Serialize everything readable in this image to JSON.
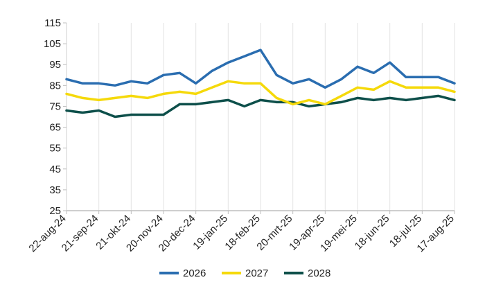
{
  "chart_data": {
    "type": "line",
    "title": "",
    "xlabel": "",
    "ylabel": "",
    "ylim": [
      25,
      115
    ],
    "yticks": [
      25,
      35,
      45,
      55,
      65,
      75,
      85,
      95,
      105,
      115
    ],
    "x_tick_labels": [
      "22-aug-24",
      "21-sep-24",
      "21-okt-24",
      "20-nov-24",
      "20-dec-24",
      "19-jan-25",
      "18-feb-25",
      "20-mrt-25",
      "19-apr-25",
      "19-mei-25",
      "18-jun-25",
      "18-jul-25",
      "17-aug-25"
    ],
    "grid": "vertical",
    "legend": "bottom",
    "colors": {
      "2026": "#2a6db0",
      "2027": "#f5d90a",
      "2028": "#0d4f4a"
    },
    "series": [
      {
        "name": "2026",
        "x": [
          "22-aug-24",
          "6-sep-24",
          "21-sep-24",
          "6-okt-24",
          "21-okt-24",
          "5-nov-24",
          "20-nov-24",
          "5-dec-24",
          "20-dec-24",
          "4-jan-25",
          "19-jan-25",
          "3-feb-25",
          "18-feb-25",
          "5-mrt-25",
          "20-mrt-25",
          "4-apr-25",
          "19-apr-25",
          "4-mei-25",
          "19-mei-25",
          "3-jun-25",
          "18-jun-25",
          "3-jul-25",
          "18-jul-25",
          "2-aug-25",
          "17-aug-25"
        ],
        "values": [
          88,
          86,
          86,
          85,
          87,
          86,
          90,
          91,
          86,
          92,
          96,
          99,
          102,
          90,
          86,
          88,
          84,
          88,
          94,
          91,
          96,
          89,
          89,
          89,
          86
        ]
      },
      {
        "name": "2027",
        "x": [
          "22-aug-24",
          "6-sep-24",
          "21-sep-24",
          "6-okt-24",
          "21-okt-24",
          "5-nov-24",
          "20-nov-24",
          "5-dec-24",
          "20-dec-24",
          "4-jan-25",
          "19-jan-25",
          "3-feb-25",
          "18-feb-25",
          "5-mrt-25",
          "20-mrt-25",
          "4-apr-25",
          "19-apr-25",
          "4-mei-25",
          "19-mei-25",
          "3-jun-25",
          "18-jun-25",
          "3-jul-25",
          "18-jul-25",
          "2-aug-25",
          "17-aug-25"
        ],
        "values": [
          81,
          79,
          78,
          79,
          80,
          79,
          81,
          82,
          81,
          84,
          87,
          86,
          86,
          79,
          76,
          78,
          76,
          80,
          84,
          83,
          87,
          84,
          84,
          84,
          82
        ]
      },
      {
        "name": "2028",
        "x": [
          "22-aug-24",
          "6-sep-24",
          "21-sep-24",
          "6-okt-24",
          "21-okt-24",
          "5-nov-24",
          "20-nov-24",
          "5-dec-24",
          "20-dec-24",
          "4-jan-25",
          "19-jan-25",
          "3-feb-25",
          "18-feb-25",
          "5-mrt-25",
          "20-mrt-25",
          "4-apr-25",
          "19-apr-25",
          "4-mei-25",
          "19-mei-25",
          "3-jun-25",
          "18-jun-25",
          "3-jul-25",
          "18-jul-25",
          "2-aug-25",
          "17-aug-25"
        ],
        "values": [
          73,
          72,
          73,
          70,
          71,
          71,
          71,
          76,
          76,
          77,
          78,
          75,
          78,
          77,
          77,
          75,
          76,
          77,
          79,
          78,
          79,
          78,
          79,
          80,
          78
        ]
      }
    ]
  }
}
